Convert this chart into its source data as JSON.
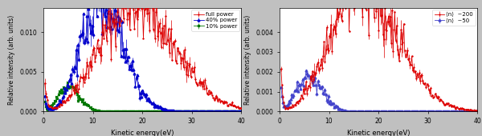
{
  "xlim": [
    0,
    40
  ],
  "xlabel": "Kinetic energy(eV)",
  "ylabel": "Relative intensity (arb. units)",
  "left_ylim": [
    0,
    0.013
  ],
  "right_ylim": [
    0,
    0.0052
  ],
  "left_yticks": [
    0.0,
    0.005,
    0.01
  ],
  "right_yticks": [
    0.0,
    0.001,
    0.002,
    0.003,
    0.004
  ],
  "left_legend": [
    "full power",
    "40% power",
    "10% power"
  ],
  "right_legend": [
    "<n>  ~200",
    "<n>  ~50"
  ],
  "left_colors": [
    "#dd0000",
    "#0000cc",
    "#007700"
  ],
  "right_colors": [
    "#dd0000",
    "#4444cc"
  ],
  "fig_bg": "#c0c0c0",
  "plot_bg": "#ffffff"
}
